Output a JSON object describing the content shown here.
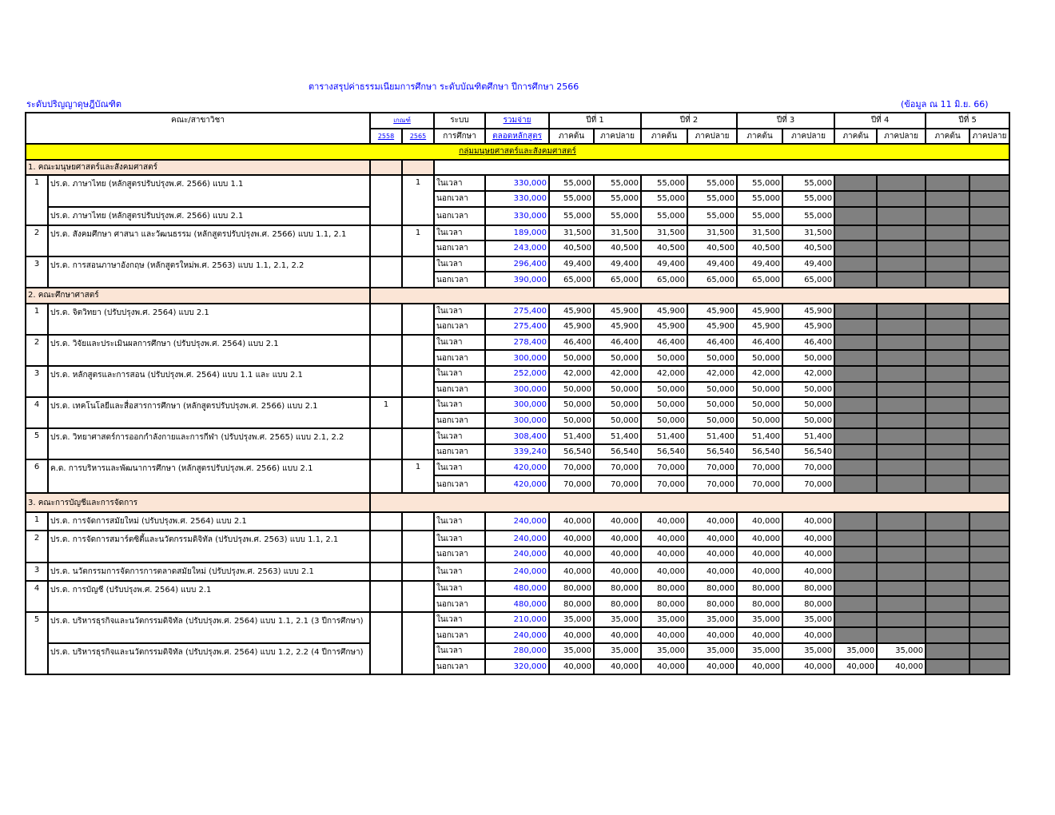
{
  "title": "ตารางสรุปค่าธรรมเนียมการศึกษา ระดับบัณฑิตศึกษา ปีการศึกษา 2566",
  "level": "ระดับปริญญาดุษฎีบัณฑิต",
  "as_of": "(ข้อมูล ณ 11 มิ.ย. 66)",
  "header": {
    "faculty": "คณะ/สาขาวิชา",
    "criteria": "เกณฑ์",
    "criteria_years": [
      "2558",
      "2565"
    ],
    "system_1": "ระบบ",
    "system_2": "การศึกษา",
    "total_1": "รวมจ่าย",
    "total_2": "ตลอดหลักสูตร",
    "years": [
      "ปีที่ 1",
      "ปีที่ 2",
      "ปีที่ 3",
      "ปีที่ 4",
      "ปีที่ 5"
    ],
    "semesters": [
      "ภาคต้น",
      "ภาคปลาย"
    ]
  },
  "group": "กลุ่มมนุษยศาสตร์และสังคมศาสตร์",
  "colors": {
    "group": "#ffff00",
    "section": "#fbe5d6",
    "not_applicable": "#808080",
    "total": "#0000ff"
  },
  "faculties": [
    {
      "name": "1. คณะมนุษยศาสตร์และสังคมศาสตร์",
      "programs": [
        {
          "no": "1",
          "c2558": "",
          "c2565": "1",
          "entries": [
            {
              "name": "ปร.ด. ภาษาไทย (หลักสูตรปรับปรุงพ.ศ. 2566) แบบ 1.1",
              "rows": [
                {
                  "mode": "ในเวลา",
                  "total": "330,000",
                  "fees": [
                    "55,000",
                    "55,000",
                    "55,000",
                    "55,000",
                    "55,000",
                    "55,000"
                  ]
                },
                {
                  "mode": "นอกเวลา",
                  "total": "330,000",
                  "fees": [
                    "55,000",
                    "55,000",
                    "55,000",
                    "55,000",
                    "55,000",
                    "55,000"
                  ]
                }
              ]
            },
            {
              "name": "ปร.ด. ภาษาไทย (หลักสูตรปรับปรุงพ.ศ. 2566) แบบ 2.1",
              "rows": [
                {
                  "mode": "นอกเวลา",
                  "total": "330,000",
                  "fees": [
                    "55,000",
                    "55,000",
                    "55,000",
                    "55,000",
                    "55,000",
                    "55,000"
                  ]
                }
              ]
            }
          ]
        },
        {
          "no": "2",
          "c2558": "",
          "c2565": "1",
          "entries": [
            {
              "name": "ปร.ด. สังคมศึกษา ศาสนา และวัฒนธรรม (หลักสูตรปรับปรุงพ.ศ. 2566)  แบบ 1.1, 2.1",
              "rows": [
                {
                  "mode": "ในเวลา",
                  "total": "189,000",
                  "fees": [
                    "31,500",
                    "31,500",
                    "31,500",
                    "31,500",
                    "31,500",
                    "31,500"
                  ]
                },
                {
                  "mode": "นอกเวลา",
                  "total": "243,000",
                  "fees": [
                    "40,500",
                    "40,500",
                    "40,500",
                    "40,500",
                    "40,500",
                    "40,500"
                  ]
                }
              ]
            }
          ]
        },
        {
          "no": "3",
          "c2558": "",
          "c2565": "",
          "entries": [
            {
              "name": "ปร.ด. การสอนภาษาอังกฤษ (หลักสูตรใหม่พ.ศ. 2563)  แบบ 1.1, 2.1, 2.2",
              "rows": [
                {
                  "mode": "ในเวลา",
                  "total": "296,400",
                  "fees": [
                    "49,400",
                    "49,400",
                    "49,400",
                    "49,400",
                    "49,400",
                    "49,400"
                  ]
                },
                {
                  "mode": "นอกเวลา",
                  "total": "390,000",
                  "fees": [
                    "65,000",
                    "65,000",
                    "65,000",
                    "65,000",
                    "65,000",
                    "65,000"
                  ]
                }
              ]
            }
          ]
        }
      ]
    },
    {
      "name": "2. คณะศึกษาศาสตร์",
      "programs": [
        {
          "no": "1",
          "c2558": "",
          "c2565": "",
          "entries": [
            {
              "name": "ปร.ด. จิตวิทยา (ปรับปรุงพ.ศ. 2564) แบบ 2.1",
              "rows": [
                {
                  "mode": "ในเวลา",
                  "total": "275,400",
                  "fees": [
                    "45,900",
                    "45,900",
                    "45,900",
                    "45,900",
                    "45,900",
                    "45,900"
                  ]
                },
                {
                  "mode": "นอกเวลา",
                  "total": "275,400",
                  "fees": [
                    "45,900",
                    "45,900",
                    "45,900",
                    "45,900",
                    "45,900",
                    "45,900"
                  ]
                }
              ]
            }
          ]
        },
        {
          "no": "2",
          "c2558": "",
          "c2565": "",
          "entries": [
            {
              "name": "ปร.ด. วิจัยและประเมินผลการศึกษา (ปรับปรุงพ.ศ. 2564) แบบ 2.1",
              "rows": [
                {
                  "mode": "ในเวลา",
                  "total": "278,400",
                  "fees": [
                    "46,400",
                    "46,400",
                    "46,400",
                    "46,400",
                    "46,400",
                    "46,400"
                  ]
                },
                {
                  "mode": "นอกเวลา",
                  "total": "300,000",
                  "fees": [
                    "50,000",
                    "50,000",
                    "50,000",
                    "50,000",
                    "50,000",
                    "50,000"
                  ]
                }
              ]
            }
          ]
        },
        {
          "no": "3",
          "c2558": "",
          "c2565": "",
          "entries": [
            {
              "name": "ปร.ด. หลักสูตรและการสอน (ปรับปรุงพ.ศ. 2564) แบบ 1.1 และ แบบ 2.1",
              "rows": [
                {
                  "mode": "ในเวลา",
                  "total": "252,000",
                  "fees": [
                    "42,000",
                    "42,000",
                    "42,000",
                    "42,000",
                    "42,000",
                    "42,000"
                  ]
                },
                {
                  "mode": "นอกเวลา",
                  "total": "300,000",
                  "fees": [
                    "50,000",
                    "50,000",
                    "50,000",
                    "50,000",
                    "50,000",
                    "50,000"
                  ]
                }
              ]
            }
          ]
        },
        {
          "no": "4",
          "c2558": "1",
          "c2565": "",
          "entries": [
            {
              "name": "ปร.ด. เทคโนโลยีและสื่อสารการศึกษา (หลักสูตรปรับปรุงพ.ศ. 2566) แบบ 2.1",
              "rows": [
                {
                  "mode": "ในเวลา",
                  "total": "300,000",
                  "fees": [
                    "50,000",
                    "50,000",
                    "50,000",
                    "50,000",
                    "50,000",
                    "50,000"
                  ]
                },
                {
                  "mode": "นอกเวลา",
                  "total": "300,000",
                  "fees": [
                    "50,000",
                    "50,000",
                    "50,000",
                    "50,000",
                    "50,000",
                    "50,000"
                  ]
                }
              ]
            }
          ]
        },
        {
          "no": "5",
          "c2558": "",
          "c2565": "",
          "entries": [
            {
              "name": "ปร.ด. วิทยาศาสตร์การออกกำลังกายและการกีฬา (ปรับปรุงพ.ศ. 2565) แบบ 2.1, 2.2",
              "rows": [
                {
                  "mode": "ในเวลา",
                  "total": "308,400",
                  "fees": [
                    "51,400",
                    "51,400",
                    "51,400",
                    "51,400",
                    "51,400",
                    "51,400"
                  ]
                },
                {
                  "mode": "นอกเวลา",
                  "total": "339,240",
                  "fees": [
                    "56,540",
                    "56,540",
                    "56,540",
                    "56,540",
                    "56,540",
                    "56,540"
                  ]
                }
              ]
            }
          ]
        },
        {
          "no": "6",
          "c2558": "",
          "c2565": "1",
          "entries": [
            {
              "name": "ค.ด. การบริหารและพัฒนาการศึกษา (หลักสูตรปรับปรุงพ.ศ. 2566) แบบ 2.1",
              "rows": [
                {
                  "mode": "ในเวลา",
                  "total": "420,000",
                  "fees": [
                    "70,000",
                    "70,000",
                    "70,000",
                    "70,000",
                    "70,000",
                    "70,000"
                  ]
                },
                {
                  "mode": "นอกเวลา",
                  "total": "420,000",
                  "fees": [
                    "70,000",
                    "70,000",
                    "70,000",
                    "70,000",
                    "70,000",
                    "70,000"
                  ]
                }
              ]
            }
          ]
        }
      ]
    },
    {
      "name": "3. คณะการบัญชีและการจัดการ",
      "programs": [
        {
          "no": "1",
          "c2558": "",
          "c2565": "",
          "entries": [
            {
              "name": "ปร.ด. การจัดการสมัยใหม่ (ปรับปรุงพ.ศ. 2564) แบบ 2.1",
              "rows": [
                {
                  "mode": "ในเวลา",
                  "total": "240,000",
                  "fees": [
                    "40,000",
                    "40,000",
                    "40,000",
                    "40,000",
                    "40,000",
                    "40,000"
                  ]
                }
              ]
            }
          ]
        },
        {
          "no": "2",
          "c2558": "",
          "c2565": "",
          "entries": [
            {
              "name": "ปร.ด. การจัดการสมาร์ตซิตี้และนวัตกรรมดิจิทัล (ปรับปรุงพ.ศ. 2563) แบบ 1.1, 2.1",
              "rows": [
                {
                  "mode": "ในเวลา",
                  "total": "240,000",
                  "fees": [
                    "40,000",
                    "40,000",
                    "40,000",
                    "40,000",
                    "40,000",
                    "40,000"
                  ]
                },
                {
                  "mode": "นอกเวลา",
                  "total": "240,000",
                  "fees": [
                    "40,000",
                    "40,000",
                    "40,000",
                    "40,000",
                    "40,000",
                    "40,000"
                  ]
                }
              ]
            }
          ]
        },
        {
          "no": "3",
          "c2558": "",
          "c2565": "",
          "entries": [
            {
              "name": "ปร.ด. นวัตกรรมการจัดการการตลาดสมัยใหม่ (ปรับปรุงพ.ศ. 2563) แบบ 2.1",
              "rows": [
                {
                  "mode": "ในเวลา",
                  "total": "240,000",
                  "fees": [
                    "40,000",
                    "40,000",
                    "40,000",
                    "40,000",
                    "40,000",
                    "40,000"
                  ]
                }
              ]
            }
          ]
        },
        {
          "no": "4",
          "c2558": "",
          "c2565": "",
          "entries": [
            {
              "name": "ปร.ด. การบัญชี (ปรับปรุงพ.ศ. 2564)  แบบ 2.1",
              "rows": [
                {
                  "mode": "ในเวลา",
                  "total": "480,000",
                  "fees": [
                    "80,000",
                    "80,000",
                    "80,000",
                    "80,000",
                    "80,000",
                    "80,000"
                  ]
                },
                {
                  "mode": "นอกเวลา",
                  "total": "480,000",
                  "fees": [
                    "80,000",
                    "80,000",
                    "80,000",
                    "80,000",
                    "80,000",
                    "80,000"
                  ]
                }
              ]
            }
          ]
        },
        {
          "no": "5",
          "c2558": "",
          "c2565": "",
          "entries": [
            {
              "name": "ปร.ด. บริหารธุรกิจและนวัตกรรมดิจิทัล (ปรับปรุงพ.ศ. 2564) แบบ 1.1, 2.1 (3 ปีการศึกษา)",
              "rows": [
                {
                  "mode": "ในเวลา",
                  "total": "210,000",
                  "fees": [
                    "35,000",
                    "35,000",
                    "35,000",
                    "35,000",
                    "35,000",
                    "35,000"
                  ]
                },
                {
                  "mode": "นอกเวลา",
                  "total": "240,000",
                  "fees": [
                    "40,000",
                    "40,000",
                    "40,000",
                    "40,000",
                    "40,000",
                    "40,000"
                  ]
                }
              ]
            },
            {
              "name": "ปร.ด. บริหารธุรกิจและนวัตกรรมดิจิทัล (ปรับปรุงพ.ศ. 2564) แบบ 1.2, 2.2 (4 ปีการศึกษา)",
              "rows": [
                {
                  "mode": "ในเวลา",
                  "total": "280,000",
                  "fees": [
                    "35,000",
                    "35,000",
                    "35,000",
                    "35,000",
                    "35,000",
                    "35,000",
                    "35,000",
                    "35,000"
                  ]
                },
                {
                  "mode": "นอกเวลา",
                  "total": "320,000",
                  "fees": [
                    "40,000",
                    "40,000",
                    "40,000",
                    "40,000",
                    "40,000",
                    "40,000",
                    "40,000",
                    "40,000"
                  ]
                }
              ]
            }
          ]
        }
      ]
    }
  ]
}
